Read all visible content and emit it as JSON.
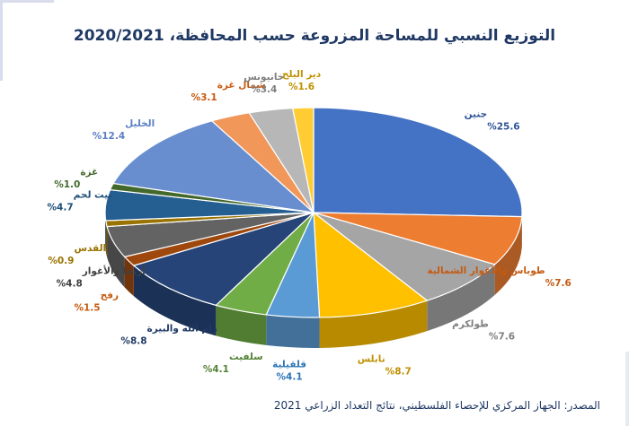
{
  "title": "التوزيع النسبي للمساحة المزروعة حسب المحافظة، 2020/2021",
  "source": "المصدر: الجهاز المركزي للإحصاء الفلسطيني، نتائج التعداد الزراعي 2021",
  "chart_data": {
    "type": "pie",
    "title": "التوزيع النسبي للمساحة المزروعة حسب المحافظة، 2020/2021",
    "categories": [
      "جنين",
      "طوباس والأغوار الشمالية",
      "طولكرم",
      "نابلس",
      "قلقيلية",
      "سلفيت",
      "رام الله والبيرة",
      "رفح",
      "أريحا والأغوار",
      "القدس",
      "بيت لحم",
      "غزة",
      "الخليل",
      "شمال غزة",
      "خانيونس",
      "دير البلح"
    ],
    "values": [
      25.6,
      7.6,
      7.6,
      8.7,
      4.1,
      4.1,
      8.8,
      1.5,
      4.8,
      0.9,
      4.7,
      1.0,
      12.4,
      3.1,
      3.4,
      1.6
    ],
    "value_labels": [
      "%25.6",
      "%7.6",
      "%7.6",
      "%8.7",
      "%4.1",
      "%4.1",
      "%8.8",
      "%1.5",
      "%4.8",
      "%0.9",
      "%4.7",
      "%1.0",
      "%12.4",
      "%3.1",
      "%3.4",
      "%1.6"
    ],
    "colors": [
      "#4472c4",
      "#ed7d31",
      "#a5a5a5",
      "#ffc000",
      "#5b9bd5",
      "#70ad47",
      "#264478",
      "#9e480e",
      "#636363",
      "#997300",
      "#255e91",
      "#43682b",
      "#698ed0",
      "#f1975a",
      "#b7b7b7",
      "#ffcd33"
    ],
    "label_colors": [
      "#2f5597",
      "#c55a11",
      "#7f7f7f",
      "#bf9000",
      "#2e75b6",
      "#548235",
      "#203864",
      "#c55a11",
      "#404040",
      "#997300",
      "#1f4e79",
      "#43682b",
      "#5a7fc4",
      "#c55a11",
      "#7f7f7f",
      "#bf9000"
    ],
    "style": "3d-pie",
    "legend": "none"
  }
}
